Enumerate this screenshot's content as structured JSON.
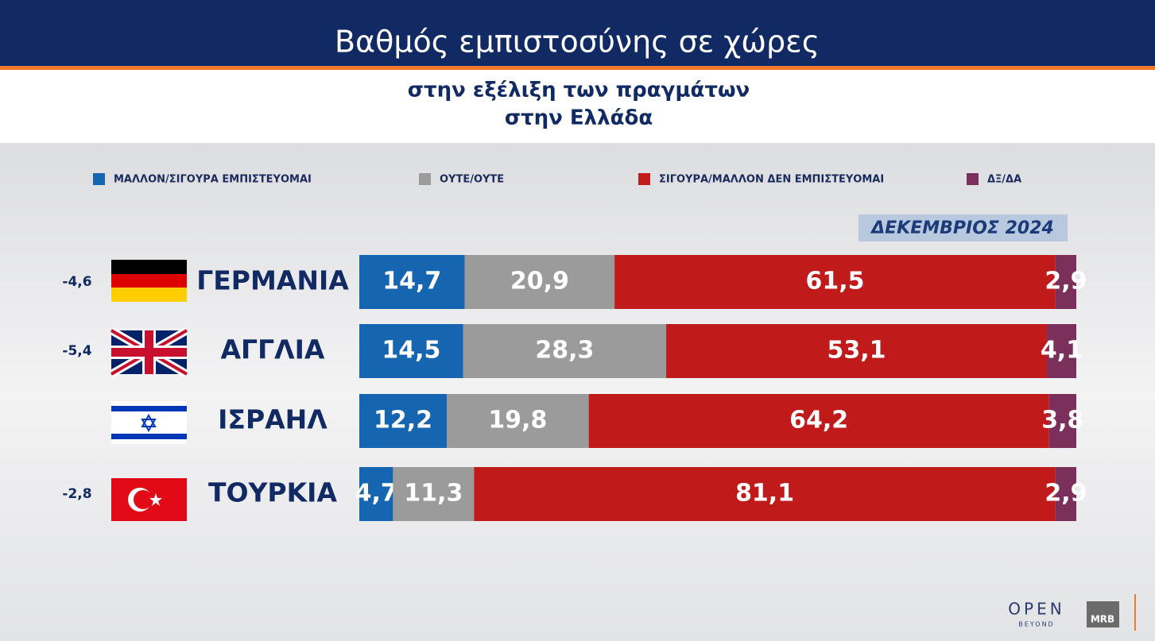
{
  "chart_data": {
    "type": "stacked-bar-horizontal",
    "title": "Βαθμός εμπιστοσύνης σε χώρες",
    "subtitle": [
      "στην εξέλιξη των πραγμάτων",
      "στην Ελλάδα"
    ],
    "period": "ΔΕΚΕΜΒΡΙΟΣ 2024",
    "categories": [
      "ΓΕΡΜΑΝΙΑ",
      "ΑΓΓΛΙΑ",
      "ΙΣΡΑΗΛ",
      "ΤΟΥΡΚΙΑ"
    ],
    "changes": [
      "-4,6",
      "-5,4",
      null,
      "-2,8"
    ],
    "xlim": [
      0,
      100
    ],
    "series": [
      {
        "name": "ΜΑΛΛΟΝ/ΣΙΓΟΥΡΑ ΕΜΠΙΣΤΕΥΟΜΑΙ",
        "color": "#1565b0",
        "values": [
          14.7,
          14.5,
          12.2,
          4.7
        ],
        "value_labels": [
          "14,7",
          "14,5",
          "12,2",
          "4,7"
        ]
      },
      {
        "name": "ΟΥΤΕ/ΟΥΤΕ",
        "color": "#9b9b9b",
        "values": [
          20.9,
          28.3,
          19.8,
          11.3
        ],
        "value_labels": [
          "20,9",
          "28,3",
          "19,8",
          "11,3"
        ]
      },
      {
        "name": "ΣΙΓΟΥΡΑ/ΜΑΛΛΟΝ ΔΕΝ ΕΜΠΙΣΤΕΥΟΜΑΙ",
        "color": "#c01a1a",
        "values": [
          61.5,
          53.1,
          64.2,
          81.1
        ],
        "value_labels": [
          "61,5",
          "53,1",
          "64,2",
          "81,1"
        ]
      },
      {
        "name": "ΔΞ/ΔΑ",
        "color": "#7b2f5b",
        "values": [
          2.9,
          4.1,
          3.8,
          2.9
        ],
        "value_labels": [
          "2,9",
          "4,1",
          "3,8",
          "2,9"
        ]
      }
    ]
  },
  "branding": {
    "channel": "OPEN",
    "channel_tagline": "BEYOND",
    "pollster": "MRB"
  }
}
